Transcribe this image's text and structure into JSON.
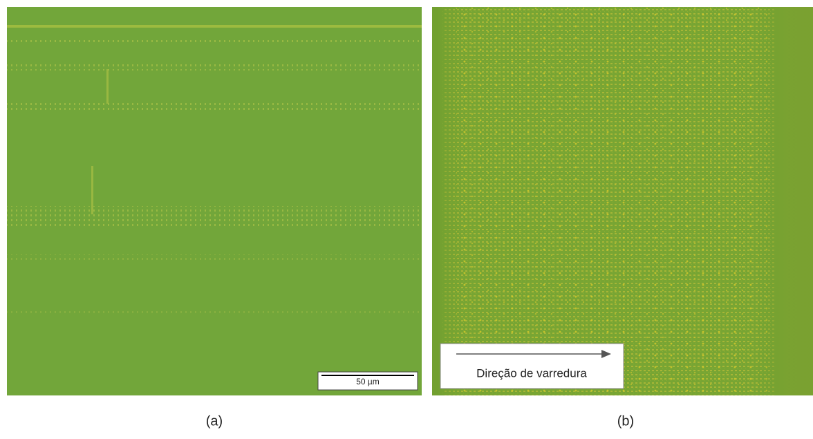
{
  "panels": [
    {
      "label": "(a)",
      "scale_bar": "50 µm"
    },
    {
      "label": "(b)",
      "annotation": "Direção de varredura"
    }
  ]
}
